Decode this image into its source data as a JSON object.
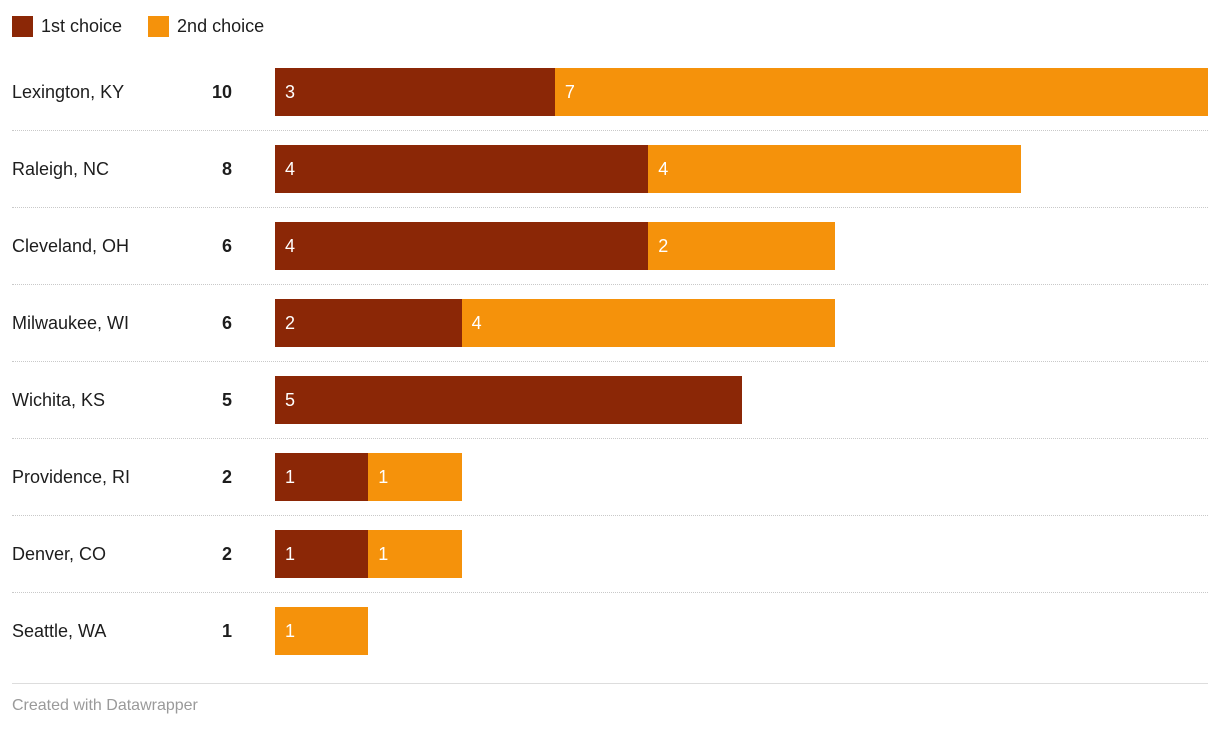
{
  "legend": [
    {
      "label": "1st choice",
      "color": "#8b2706"
    },
    {
      "label": "2nd choice",
      "color": "#f5920b"
    }
  ],
  "chart_data": {
    "type": "bar",
    "stacked": true,
    "orientation": "horizontal",
    "categories": [
      "Lexington, KY",
      "Raleigh, NC",
      "Cleveland, OH",
      "Milwaukee, WI",
      "Wichita, KS",
      "Providence, RI",
      "Denver, CO",
      "Seattle, WA"
    ],
    "totals": [
      10,
      8,
      6,
      6,
      5,
      2,
      2,
      1
    ],
    "series": [
      {
        "name": "1st choice",
        "color": "#8b2706",
        "values": [
          3,
          4,
          4,
          2,
          5,
          1,
          1,
          0
        ]
      },
      {
        "name": "2nd choice",
        "color": "#f5920b",
        "values": [
          7,
          4,
          2,
          4,
          0,
          1,
          1,
          1
        ]
      }
    ],
    "xmax": 10,
    "grid": "dotted-row-separators",
    "legend_position": "top-left",
    "value_labels": "inside-start-white"
  },
  "footer": {
    "credit": "Created with Datawrapper"
  }
}
